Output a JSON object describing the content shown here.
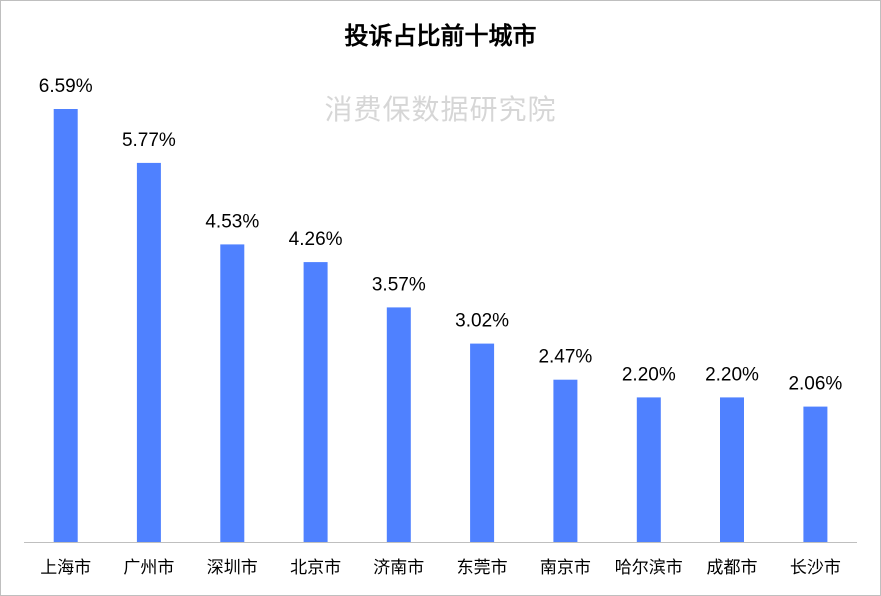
{
  "title": "投诉占比前十城市",
  "watermark": "消费保数据研究院",
  "colors": {
    "bar": "#4f81ff",
    "axis": "#bfbfbf"
  },
  "chart_data": {
    "type": "bar",
    "title": "投诉占比前十城市",
    "xlabel": "",
    "ylabel": "",
    "categories": [
      "上海市",
      "广州市",
      "深圳市",
      "北京市",
      "济南市",
      "东莞市",
      "南京市",
      "哈尔滨市",
      "成都市",
      "长沙市"
    ],
    "values": [
      6.59,
      5.77,
      4.53,
      4.26,
      3.57,
      3.02,
      2.47,
      2.2,
      2.2,
      2.06
    ],
    "value_labels": [
      "6.59%",
      "5.77%",
      "4.53%",
      "4.26%",
      "3.57%",
      "3.02%",
      "2.47%",
      "2.20%",
      "2.20%",
      "2.06%"
    ],
    "ylim": [
      0,
      6.59
    ],
    "grid": false,
    "legend": "none"
  }
}
